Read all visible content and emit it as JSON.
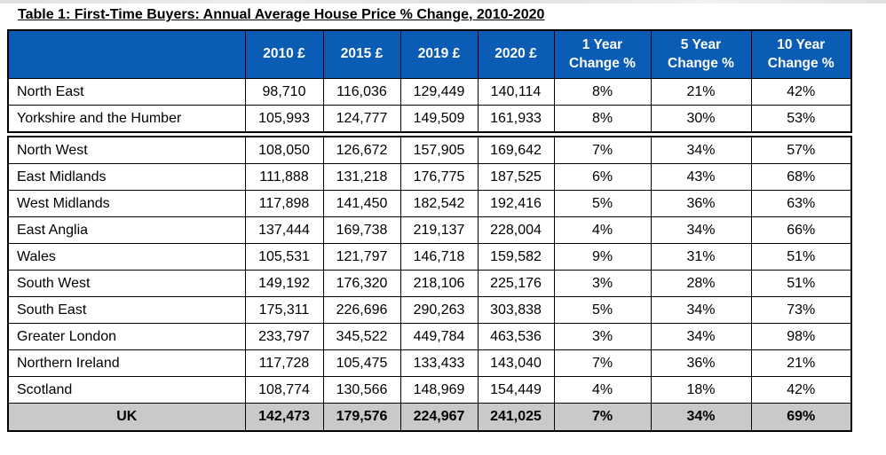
{
  "title": "Table 1: First-Time Buyers: Annual Average House Price % Change, 2010-2020",
  "colors": {
    "header_bg": "#0b5cb4",
    "header_text": "#ffffff",
    "total_row_bg": "#c9c9c9",
    "border": "#000000"
  },
  "table": {
    "columns": [
      "",
      "2010 £",
      "2015 £",
      "2019 £",
      "2020 £",
      "1 Year Change %",
      "5 Year Change %",
      "10 Year Change %"
    ],
    "sections": [
      {
        "rows": [
          {
            "region": "North East",
            "cells": [
              "98,710",
              "116,036",
              "129,449",
              "140,114",
              "8%",
              "21%",
              "42%"
            ]
          },
          {
            "region": "Yorkshire and the Humber",
            "cells": [
              "105,993",
              "124,777",
              "149,509",
              "161,933",
              "8%",
              "30%",
              "53%"
            ]
          }
        ]
      },
      {
        "rows": [
          {
            "region": "North West",
            "cells": [
              "108,050",
              "126,672",
              "157,905",
              "169,642",
              "7%",
              "34%",
              "57%"
            ]
          },
          {
            "region": "East Midlands",
            "cells": [
              "111,888",
              "131,218",
              "176,775",
              "187,525",
              "6%",
              "43%",
              "68%"
            ]
          },
          {
            "region": "West Midlands",
            "cells": [
              "117,898",
              "141,450",
              "182,542",
              "192,416",
              "5%",
              "36%",
              "63%"
            ]
          },
          {
            "region": "East Anglia",
            "cells": [
              "137,444",
              "169,738",
              "219,137",
              "228,004",
              "4%",
              "34%",
              "66%"
            ]
          },
          {
            "region": "Wales",
            "cells": [
              "105,531",
              "121,797",
              "146,718",
              "159,582",
              "9%",
              "31%",
              "51%"
            ]
          },
          {
            "region": "South West",
            "cells": [
              "149,192",
              "176,320",
              "218,106",
              "225,176",
              "3%",
              "28%",
              "51%"
            ]
          },
          {
            "region": "South East",
            "cells": [
              "175,311",
              "226,696",
              "290,263",
              "303,838",
              "5%",
              "34%",
              "73%"
            ]
          },
          {
            "region": "Greater London",
            "cells": [
              "233,797",
              "345,522",
              "449,784",
              "463,536",
              "3%",
              "34%",
              "98%"
            ]
          },
          {
            "region": "Northern Ireland",
            "cells": [
              "117,728",
              "105,475",
              "133,433",
              "143,040",
              "7%",
              "36%",
              "21%"
            ]
          },
          {
            "region": "Scotland",
            "cells": [
              "108,774",
              "130,566",
              "148,969",
              "154,449",
              "4%",
              "18%",
              "42%"
            ]
          },
          {
            "region": "UK",
            "cells": [
              "142,473",
              "179,576",
              "224,967",
              "241,025",
              "7%",
              "34%",
              "69%"
            ],
            "total": true
          }
        ]
      }
    ]
  }
}
